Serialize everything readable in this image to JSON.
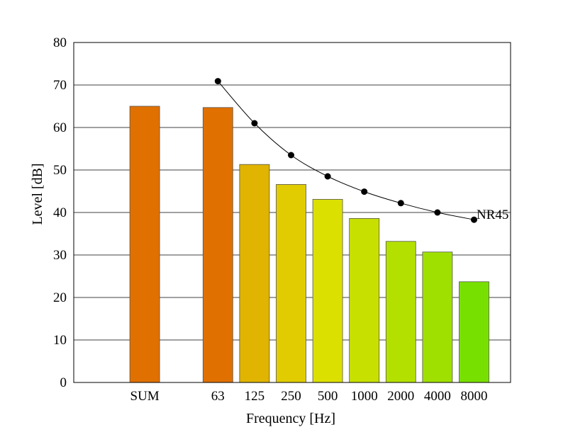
{
  "chart_data": {
    "type": "bar",
    "xlabel": "Frequency [Hz]",
    "ylabel": "Level [dB]",
    "ylim": [
      0,
      80
    ],
    "yticks": [
      0,
      10,
      20,
      30,
      40,
      50,
      60,
      70,
      80
    ],
    "grid": true,
    "categories": [
      "SUM",
      "63",
      "125",
      "250",
      "500",
      "1000",
      "2000",
      "4000",
      "8000"
    ],
    "slots": [
      1,
      3,
      4,
      5,
      6,
      7,
      8,
      9,
      10
    ],
    "values": [
      65.0,
      64.7,
      51.3,
      46.6,
      43.1,
      38.6,
      33.2,
      30.7,
      23.7
    ],
    "bar_colors": [
      "#e07000",
      "#e07000",
      "#e0b400",
      "#e0cc00",
      "#dce000",
      "#c8e000",
      "#b4e000",
      "#a0e000",
      "#78e000"
    ],
    "curve": {
      "label": "NR45",
      "categories": [
        "63",
        "125",
        "250",
        "500",
        "1000",
        "2000",
        "4000",
        "8000"
      ],
      "values": [
        70.9,
        61.0,
        53.5,
        48.5,
        44.9,
        42.2,
        40.0,
        38.3
      ]
    }
  }
}
